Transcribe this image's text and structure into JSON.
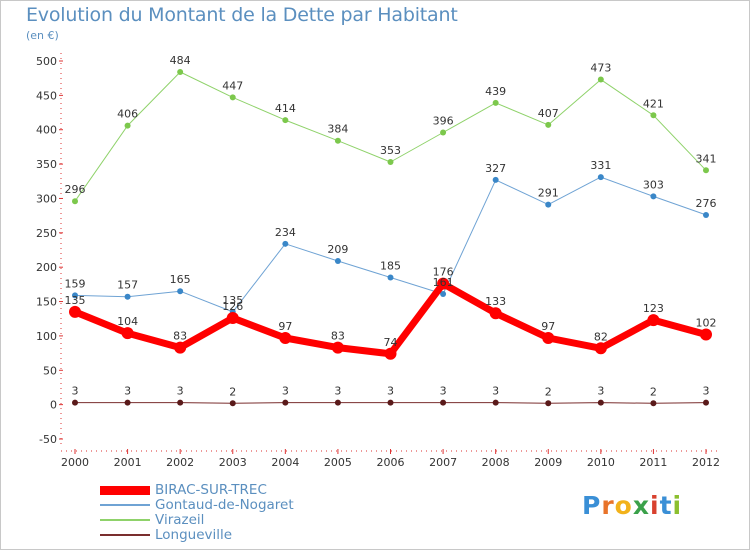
{
  "header": {
    "title": "Evolution du Montant de la Dette par Habitant",
    "unit": "(en €)"
  },
  "logo": {
    "letters": [
      "P",
      "r",
      "o",
      "x",
      "i",
      "t",
      "i"
    ],
    "colors": [
      "#3a8fd6",
      "#e8732a",
      "#f2b21b",
      "#3aa14a",
      "#d8412f",
      "#3a8fd6",
      "#8bbf2f"
    ]
  },
  "chart_data": {
    "type": "line",
    "title": "Evolution du Montant de la Dette par Habitant",
    "ylabel": "(en €)",
    "xlabel": "",
    "x": [
      "2000",
      "2001",
      "2002",
      "2003",
      "2004",
      "2005",
      "2006",
      "2007",
      "2008",
      "2009",
      "2010",
      "2011",
      "2012"
    ],
    "ylim": [
      -50,
      500
    ],
    "yticks": [
      -50,
      0,
      50,
      100,
      150,
      200,
      250,
      300,
      350,
      400,
      450,
      500
    ],
    "grid": false,
    "legend_position": "bottom-left",
    "series": [
      {
        "name": "BIRAC-SUR-TREC",
        "color": "#ff0000",
        "values": [
          135,
          104,
          83,
          126,
          97,
          83,
          74,
          176,
          133,
          97,
          82,
          123,
          102
        ]
      },
      {
        "name": "Gontaud-de-Nogaret",
        "color": "#6fa3d4",
        "values": [
          159,
          157,
          165,
          135,
          234,
          209,
          185,
          161,
          327,
          291,
          331,
          303,
          276
        ]
      },
      {
        "name": "Virazeil",
        "color": "#8fd26a",
        "values": [
          296,
          406,
          484,
          447,
          414,
          384,
          353,
          396,
          439,
          407,
          473,
          421,
          341
        ]
      },
      {
        "name": "Longueville",
        "color": "#7a2e2e",
        "values": [
          3,
          3,
          3,
          2,
          3,
          3,
          3,
          3,
          3,
          2,
          3,
          2,
          3
        ]
      }
    ],
    "data_labels": {
      "BIRAC-SUR-TREC": [
        "135",
        "104",
        "83",
        "126",
        "97",
        "83",
        "74",
        "176",
        "133",
        "97",
        "82",
        "123",
        "102"
      ],
      "Gontaud-de-Nogaret": [
        "159",
        "157",
        "165",
        "135",
        "234",
        "209",
        "185",
        "161",
        "327",
        "291",
        "331",
        "303",
        "276"
      ],
      "Virazeil": [
        "296",
        "406",
        "484",
        "447",
        "414",
        "384",
        "353",
        "396",
        "439",
        "407",
        "473",
        "421",
        "341"
      ],
      "Longueville": [
        "3",
        "3",
        "3",
        "2",
        "3",
        "3",
        "3",
        "3",
        "3",
        "2",
        "3",
        "2",
        "3"
      ]
    }
  }
}
